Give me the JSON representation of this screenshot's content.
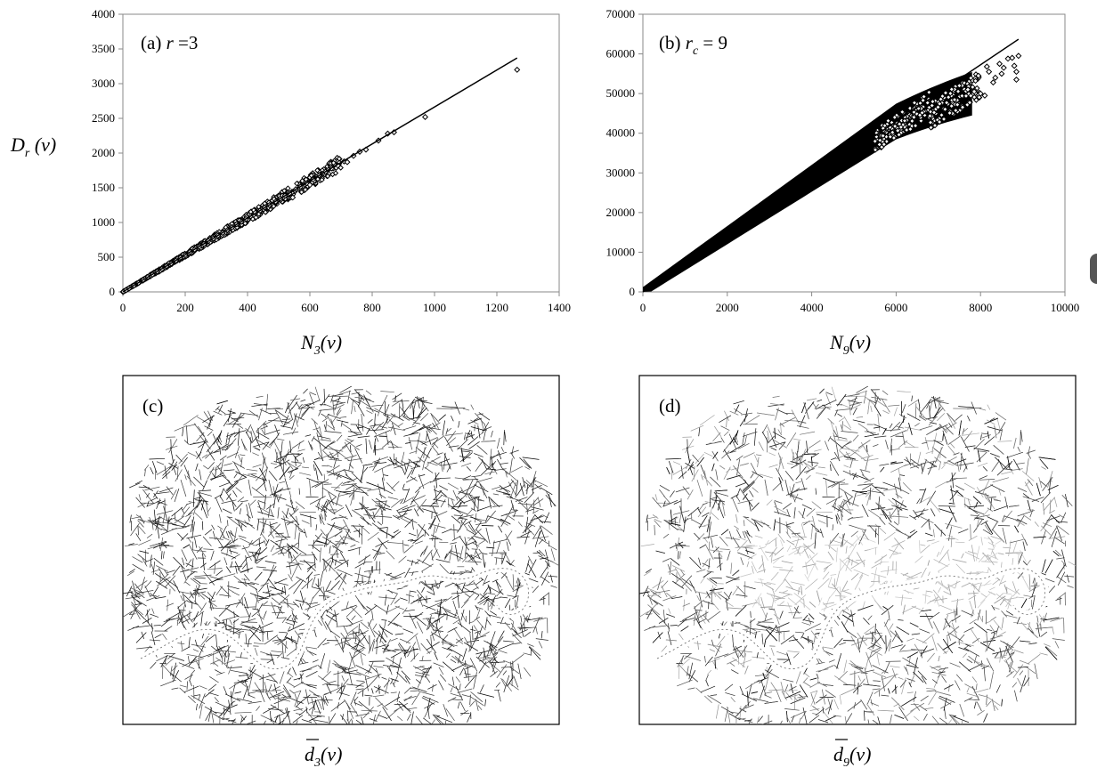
{
  "chart_data": [
    {
      "type": "scatter",
      "panel_label": "(a)",
      "panel_param": "r =3",
      "xlabel": "N3(v)",
      "ylabel": "Dr(v)",
      "xlim": [
        0,
        1400
      ],
      "ylim": [
        0,
        4000
      ],
      "xticks": [
        0,
        200,
        400,
        600,
        800,
        1000,
        1200,
        1400
      ],
      "yticks": [
        0,
        500,
        1000,
        1500,
        2000,
        2500,
        3000,
        3500,
        4000
      ],
      "fit_line": {
        "x": [
          0,
          1265
        ],
        "y": [
          0,
          3370
        ]
      },
      "marker_color": "#000000",
      "sample_points": [
        [
          10,
          25
        ],
        [
          20,
          52
        ],
        [
          35,
          90
        ],
        [
          50,
          130
        ],
        [
          65,
          172
        ],
        [
          80,
          215
        ],
        [
          95,
          250
        ],
        [
          110,
          292
        ],
        [
          125,
          330
        ],
        [
          140,
          372
        ],
        [
          155,
          410
        ],
        [
          170,
          450
        ],
        [
          185,
          495
        ],
        [
          200,
          530
        ],
        [
          215,
          575
        ],
        [
          230,
          610
        ],
        [
          245,
          650
        ],
        [
          260,
          690
        ],
        [
          275,
          735
        ],
        [
          290,
          770
        ],
        [
          305,
          810
        ],
        [
          320,
          850
        ],
        [
          335,
          890
        ],
        [
          350,
          930
        ],
        [
          365,
          975
        ],
        [
          380,
          1010
        ],
        [
          395,
          1050
        ],
        [
          410,
          1090
        ],
        [
          425,
          1140
        ],
        [
          440,
          1170
        ],
        [
          455,
          1215
        ],
        [
          470,
          1250
        ],
        [
          490,
          1300
        ],
        [
          505,
          1345
        ],
        [
          520,
          1385
        ],
        [
          535,
          1420
        ],
        [
          555,
          1480
        ],
        [
          570,
          1515
        ],
        [
          590,
          1565
        ],
        [
          610,
          1620
        ],
        [
          630,
          1680
        ],
        [
          650,
          1730
        ],
        [
          670,
          1780
        ],
        [
          690,
          1820
        ],
        [
          710,
          1880
        ],
        [
          740,
          1960
        ],
        [
          760,
          2020
        ],
        [
          820,
          2180
        ],
        [
          870,
          2300
        ],
        [
          970,
          2520
        ],
        [
          1265,
          3200
        ],
        [
          545,
          1360
        ],
        [
          600,
          1540
        ],
        [
          720,
          1870
        ],
        [
          780,
          2050
        ],
        [
          850,
          2280
        ]
      ]
    },
    {
      "type": "scatter",
      "panel_label": "(b)",
      "panel_param": "rc = 9",
      "xlabel": "N9(v)",
      "xlim": [
        0,
        10000
      ],
      "ylim": [
        0,
        70000
      ],
      "xticks": [
        0,
        2000,
        4000,
        6000,
        8000,
        10000
      ],
      "yticks": [
        0,
        10000,
        20000,
        30000,
        40000,
        50000,
        60000,
        70000
      ],
      "fit_line": {
        "x": [
          0,
          8900
        ],
        "y": [
          0,
          63700
        ]
      },
      "marker_color": "#000000",
      "outlier_points": [
        [
          7700,
          51000
        ],
        [
          7850,
          50500
        ],
        [
          8000,
          50000
        ],
        [
          8100,
          49500
        ],
        [
          8200,
          55500
        ],
        [
          8350,
          54000
        ],
        [
          8450,
          57500
        ],
        [
          8550,
          56500
        ],
        [
          8650,
          58800
        ],
        [
          8800,
          57000
        ],
        [
          8850,
          53500
        ],
        [
          8900,
          59500
        ],
        [
          8750,
          59000
        ],
        [
          8300,
          52800
        ],
        [
          7950,
          54500
        ],
        [
          8150,
          56800
        ],
        [
          8500,
          55000
        ],
        [
          8850,
          55500
        ]
      ]
    },
    {
      "type": "map",
      "panel_label": "(c)",
      "caption": "d3(v)"
    },
    {
      "type": "map",
      "panel_label": "(d)",
      "caption": "d9(v)"
    }
  ]
}
